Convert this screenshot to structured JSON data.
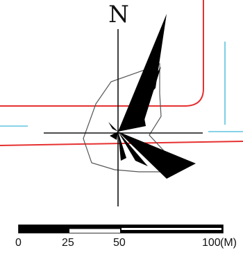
{
  "north_label": "N",
  "scale_bar": {
    "ticks": [
      "0",
      "25",
      "50",
      "100"
    ],
    "unit": "(M)"
  },
  "colors": {
    "road_edge": "#e63030",
    "road_lane": "#5ec3e0",
    "rose_fill": "#000000",
    "outline": "#555555",
    "axis": "#111111"
  },
  "icons": {
    "north_arrow": "north-arrow-icon",
    "wind_rose": "wind-rose-icon"
  }
}
